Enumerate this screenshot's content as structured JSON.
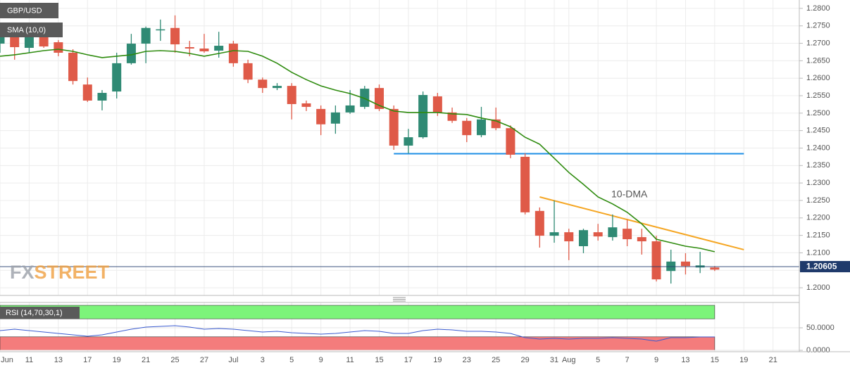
{
  "chart_data": [
    {
      "type": "candlestick",
      "title": "GBP/USD",
      "categories": [
        "Jun",
        null,
        "11",
        null,
        "13",
        null,
        "17",
        null,
        "19",
        null,
        "21",
        null,
        "25",
        null,
        "27",
        null,
        "Jul",
        null,
        "3",
        null,
        "5",
        null,
        "9",
        null,
        "11",
        null,
        "15",
        null,
        "17",
        null,
        "19",
        null,
        "23",
        null,
        "25",
        null,
        "29",
        null,
        "31",
        "Aug",
        null,
        "5",
        null,
        "7",
        null,
        "9",
        null,
        "13",
        null,
        "15",
        null,
        "19",
        null,
        "21"
      ],
      "open": [
        1.2699,
        1.2733,
        1.2687,
        1.2733,
        1.2703,
        1.2673,
        1.2582,
        1.2536,
        1.2562,
        1.2643,
        1.2699,
        1.274,
        1.2744,
        1.2689,
        1.2685,
        1.2679,
        1.2699,
        1.2643,
        1.2596,
        1.2572,
        1.2578,
        1.2528,
        1.2512,
        1.247,
        1.2502,
        1.2518,
        1.2572,
        1.2512,
        1.2407,
        1.2431,
        1.2548,
        1.2502,
        1.2478,
        1.2437,
        1.2482,
        1.2457,
        1.2375,
        1.222,
        1.2149,
        1.2159,
        1.2119,
        1.2159,
        1.2145,
        1.2169,
        1.2145,
        1.2133,
        1.2048,
        1.2075,
        1.2058,
        1.2058,
        null,
        null,
        null,
        null
      ],
      "high": [
        1.2754,
        1.2744,
        1.2754,
        1.2744,
        1.2709,
        1.2683,
        1.2602,
        1.2566,
        1.2673,
        1.2727,
        1.2748,
        1.2768,
        1.278,
        1.2707,
        1.2727,
        1.2733,
        1.2707,
        1.2653,
        1.2602,
        1.2586,
        1.2586,
        1.2536,
        1.2522,
        1.2522,
        1.2566,
        1.2578,
        1.2582,
        1.2522,
        1.2455,
        1.2562,
        1.2558,
        1.2516,
        1.2486,
        1.2518,
        1.2516,
        1.2465,
        1.2385,
        1.223,
        1.225,
        1.2169,
        1.2169,
        1.2183,
        1.221,
        1.2195,
        1.2169,
        1.2149,
        1.2109,
        1.2099,
        1.2103,
        1.2062,
        null,
        null,
        null,
        null
      ],
      "low": [
        1.2673,
        1.2653,
        1.2673,
        1.2687,
        1.2663,
        1.2582,
        1.2532,
        1.2508,
        1.2542,
        1.2639,
        1.2643,
        1.2707,
        1.2673,
        1.2663,
        1.2673,
        1.2659,
        1.2633,
        1.2586,
        1.2558,
        1.2566,
        1.2482,
        1.2506,
        1.2437,
        1.2441,
        1.2498,
        1.2512,
        1.2506,
        1.2395,
        1.2385,
        1.2427,
        1.2492,
        1.2472,
        1.2417,
        1.2431,
        1.2451,
        1.2371,
        1.221,
        1.2115,
        1.2129,
        1.2079,
        1.2099,
        1.2135,
        1.2135,
        1.2119,
        1.2095,
        1.2018,
        1.2012,
        1.2038,
        1.2042,
        1.2048,
        null,
        null,
        null,
        null
      ],
      "close": [
        1.2733,
        1.2689,
        1.2727,
        1.2691,
        1.2673,
        1.2592,
        1.2536,
        1.2558,
        1.2643,
        1.2699,
        1.2744,
        1.274,
        1.2697,
        1.2685,
        1.2677,
        1.2693,
        1.2643,
        1.2596,
        1.2572,
        1.2578,
        1.2526,
        1.2518,
        1.2468,
        1.2502,
        1.2522,
        1.257,
        1.2512,
        1.2407,
        1.2431,
        1.2552,
        1.2502,
        1.2478,
        1.2437,
        1.2482,
        1.2457,
        1.2381,
        1.2216,
        1.2149,
        1.2159,
        1.2133,
        1.2165,
        1.2147,
        1.2173,
        1.2139,
        1.2133,
        1.2024,
        1.2075,
        1.2062,
        1.2064,
        1.2052,
        null,
        null,
        null,
        null
      ],
      "up_color": "#2f8a74",
      "down_color": "#df5a48",
      "series": [
        {
          "name": "SMA (10,0)",
          "color": "#2e8b0e",
          "values": [
            1.2663,
            1.2667,
            1.2673,
            1.2679,
            1.2683,
            1.2677,
            1.2667,
            1.2659,
            1.2663,
            1.2667,
            1.2677,
            1.2679,
            1.2677,
            1.2671,
            1.2663,
            1.2671,
            1.2679,
            1.2677,
            1.2663,
            1.2643,
            1.2617,
            1.2596,
            1.2578,
            1.2566,
            1.2556,
            1.2542,
            1.2522,
            1.2506,
            1.2502,
            1.2502,
            1.2502,
            1.2498,
            1.2496,
            1.2486,
            1.2478,
            1.2461,
            1.2431,
            1.2411,
            1.2371,
            1.233,
            1.2296,
            1.226,
            1.224,
            1.2216,
            1.2183,
            1.2139,
            1.2129,
            1.2119,
            1.2113,
            1.2103,
            null,
            null,
            null,
            null
          ]
        }
      ],
      "lines": [
        {
          "color": "#1e8fe6",
          "x": [
            27,
            51
          ],
          "values": [
            1.2384,
            1.2384
          ]
        },
        {
          "color": "#f5a623",
          "x": [
            37,
            51
          ],
          "values": [
            1.226,
            1.2109
          ]
        }
      ],
      "annotations": [
        {
          "text": "10-DMA",
          "color": "#3a8a1a"
        }
      ],
      "last_price": {
        "value": 1.20605,
        "color": "#1f3a6b"
      },
      "ylim": [
        1.1978,
        1.2824
      ],
      "yticks": [
        {
          "value": 1.2,
          "label": "1.2000"
        },
        {
          "value": 1.205,
          "label": "1.2050"
        },
        {
          "value": 1.21,
          "label": "1.2100"
        },
        {
          "value": 1.215,
          "label": "1.2150"
        },
        {
          "value": 1.22,
          "label": "1.2200"
        },
        {
          "value": 1.225,
          "label": "1.2250"
        },
        {
          "value": 1.23,
          "label": "1.2300"
        },
        {
          "value": 1.235,
          "label": "1.2350"
        },
        {
          "value": 1.24,
          "label": "1.2400"
        },
        {
          "value": 1.245,
          "label": "1.2450"
        },
        {
          "value": 1.25,
          "label": "1.2500"
        },
        {
          "value": 1.255,
          "label": "1.2550"
        },
        {
          "value": 1.26,
          "label": "1.2600"
        },
        {
          "value": 1.265,
          "label": "1.2650"
        },
        {
          "value": 1.27,
          "label": "1.2700"
        },
        {
          "value": 1.275,
          "label": "1.2750"
        },
        {
          "value": 1.28,
          "label": "1.2800"
        }
      ],
      "grid": true
    },
    {
      "type": "line",
      "title": "RSI (14,70,30,1)",
      "color": "#3a5bd0",
      "values": [
        43.8,
        46.9,
        43.8,
        40.6,
        37.5,
        34.4,
        31.3,
        34.4,
        40.6,
        46.9,
        51.6,
        53.1,
        54.7,
        51.6,
        46.9,
        48.4,
        46.9,
        43.8,
        40.6,
        42.2,
        39.1,
        37.5,
        35.9,
        37.5,
        40.6,
        43.8,
        42.2,
        37.5,
        37.5,
        43.8,
        46.9,
        45.3,
        42.2,
        42.2,
        40.6,
        37.5,
        28.1,
        25.0,
        26.6,
        25.0,
        26.6,
        26.6,
        28.1,
        26.6,
        25.0,
        20.3,
        28.1,
        28.1,
        29.7,
        29.7,
        null,
        null,
        null,
        null
      ],
      "bands": [
        {
          "from": 70,
          "to": 100,
          "color": "#7cf47a"
        },
        {
          "from": 0,
          "to": 30,
          "color": "#f47c7c"
        }
      ],
      "ylim": [
        -3.1,
        106.3
      ],
      "yticks": [
        {
          "value": 50,
          "label": "50.0000"
        },
        {
          "value": 0,
          "label": "0.0000"
        }
      ]
    }
  ],
  "logo": {
    "part1": "FX",
    "part2": "STREET"
  }
}
